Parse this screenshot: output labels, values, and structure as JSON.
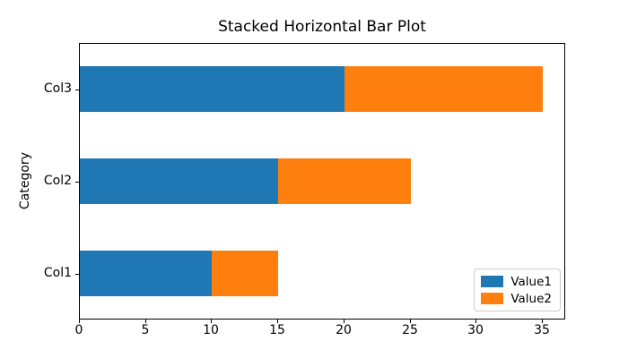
{
  "chart_data": {
    "type": "bar",
    "orientation": "horizontal",
    "stacked": true,
    "title": "Stacked Horizontal Bar Plot",
    "ylabel": "Category",
    "xlabel": "",
    "categories": [
      "Col1",
      "Col2",
      "Col3"
    ],
    "series": [
      {
        "name": "Value1",
        "color": "#1f77b4",
        "values": [
          10,
          15,
          20
        ]
      },
      {
        "name": "Value2",
        "color": "#ff7f0e",
        "values": [
          5,
          10,
          15
        ]
      }
    ],
    "xticks": [
      0,
      5,
      10,
      15,
      20,
      25,
      30,
      35
    ],
    "xlim": [
      0,
      36.75
    ],
    "ylim": [
      -0.5,
      2.5
    ],
    "bar_height": 0.5,
    "grid": false,
    "legend_position": "lower right"
  },
  "colors": {
    "background": "#ffffff",
    "axes_frame": "#000000",
    "legend_border": "#cccccc",
    "text": "#000000"
  }
}
